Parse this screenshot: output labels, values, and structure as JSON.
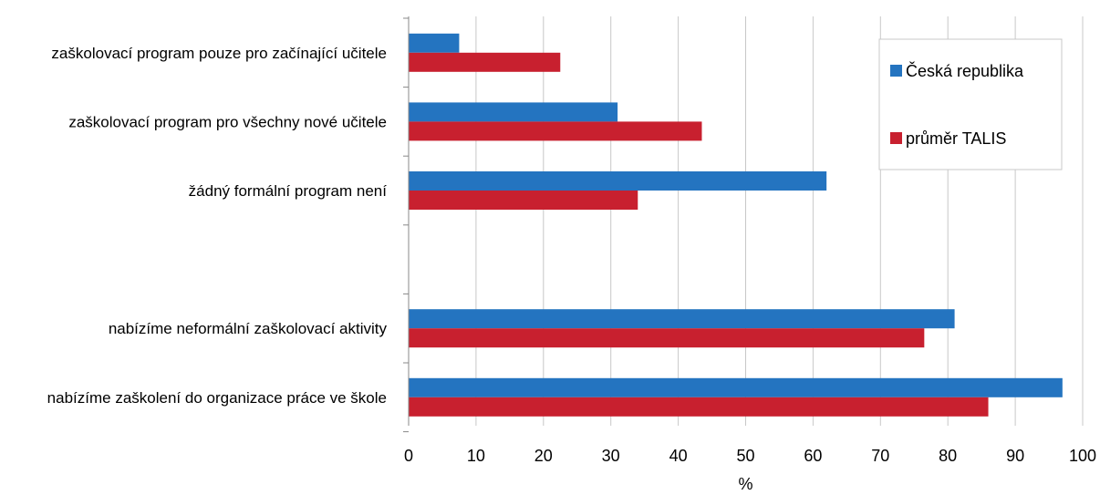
{
  "chart_data": {
    "type": "bar",
    "orientation": "horizontal",
    "title": "",
    "xlabel": "%",
    "ylabel": "",
    "xlim": [
      0,
      100
    ],
    "x_ticks": [
      0,
      10,
      20,
      30,
      40,
      50,
      60,
      70,
      80,
      90,
      100
    ],
    "grid": true,
    "legend_position": "top-right",
    "categories": [
      "zaškolovací program pouze pro začínající učitele",
      "zaškolovací program pro všechny nové učitele",
      "žádný formální program není",
      "",
      "nabízíme neformální zaškolovací aktivity",
      "nabízíme zaškolení do organizace práce ve škole"
    ],
    "series": [
      {
        "name": "Česká republika",
        "color": "#2474c0",
        "values": [
          7.5,
          31,
          62,
          null,
          81,
          97
        ]
      },
      {
        "name": "průměr TALIS",
        "color": "#c8202f",
        "values": [
          22.5,
          43.5,
          34,
          null,
          76.5,
          86
        ]
      }
    ]
  }
}
